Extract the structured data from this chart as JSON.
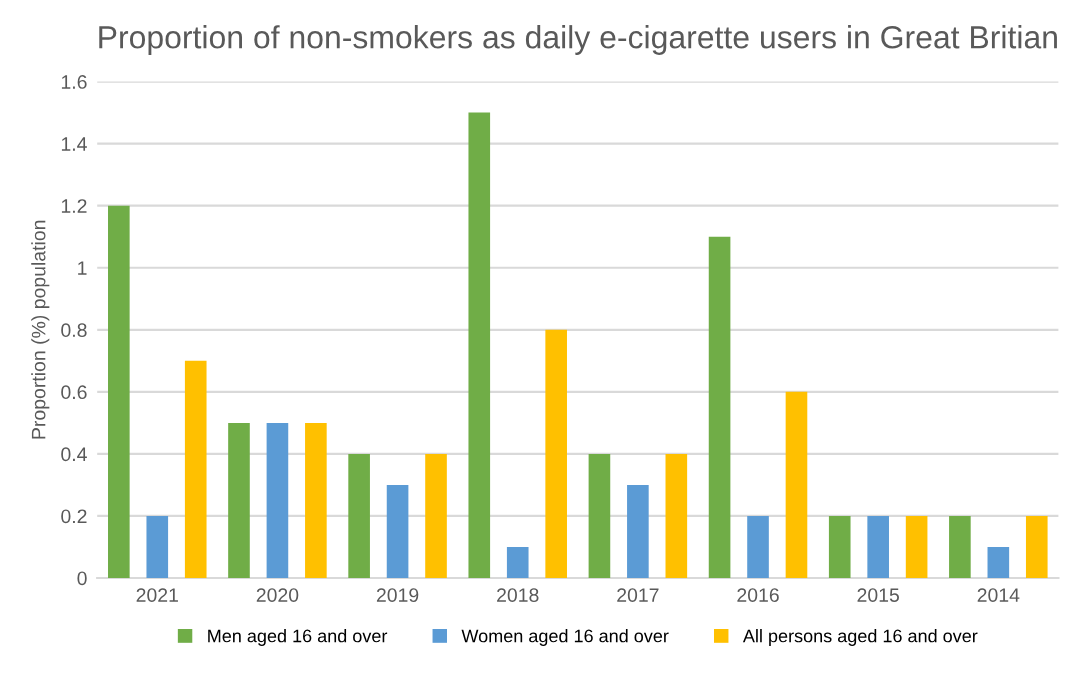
{
  "chart_data": {
    "type": "bar",
    "title": "Proportion of non-smokers as daily e-cigarette users in Great Britian",
    "ylabel": "Proportion (%) population",
    "categories": [
      "2021",
      "2020",
      "2019",
      "2018",
      "2017",
      "2016",
      "2015",
      "2014"
    ],
    "series": [
      {
        "name": "Men aged 16 and over",
        "color": "#70ad47",
        "values": [
          1.2,
          0.5,
          0.4,
          1.5,
          0.4,
          1.1,
          0.2,
          0.2
        ]
      },
      {
        "name": "Women aged 16 and over",
        "color": "#5b9bd5",
        "values": [
          0.2,
          0.5,
          0.3,
          0.1,
          0.3,
          0.2,
          0.2,
          0.1
        ]
      },
      {
        "name": "All persons aged 16 and over",
        "color": "#ffc000",
        "values": [
          0.7,
          0.5,
          0.4,
          0.8,
          0.4,
          0.6,
          0.2,
          0.2
        ]
      }
    ],
    "ylim": [
      0,
      1.6
    ],
    "yticks": [
      0,
      0.2,
      0.4,
      0.6,
      0.8,
      1,
      1.2,
      1.4,
      1.6
    ],
    "grid": "y",
    "legend": "bottom"
  }
}
